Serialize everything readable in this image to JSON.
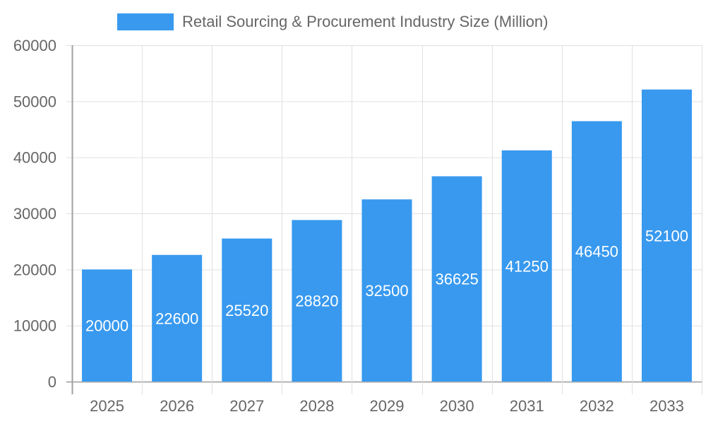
{
  "legend": {
    "label": "Retail Sourcing & Procurement Industry Size (Million)",
    "color": "#3899ef"
  },
  "chart_data": {
    "type": "bar",
    "title": "",
    "xlabel": "",
    "ylabel": "",
    "categories": [
      "2025",
      "2026",
      "2027",
      "2028",
      "2029",
      "2030",
      "2031",
      "2032",
      "2033"
    ],
    "series": [
      {
        "name": "Retail Sourcing & Procurement Industry Size (Million)",
        "values": [
          20000,
          22600,
          25520,
          28820,
          32500,
          36625,
          41250,
          46450,
          52100
        ]
      }
    ],
    "ylim": [
      0,
      60000
    ],
    "yticks": [
      0,
      10000,
      20000,
      30000,
      40000,
      50000,
      60000
    ],
    "grid": true,
    "legend_position": "top",
    "data_labels": true
  }
}
